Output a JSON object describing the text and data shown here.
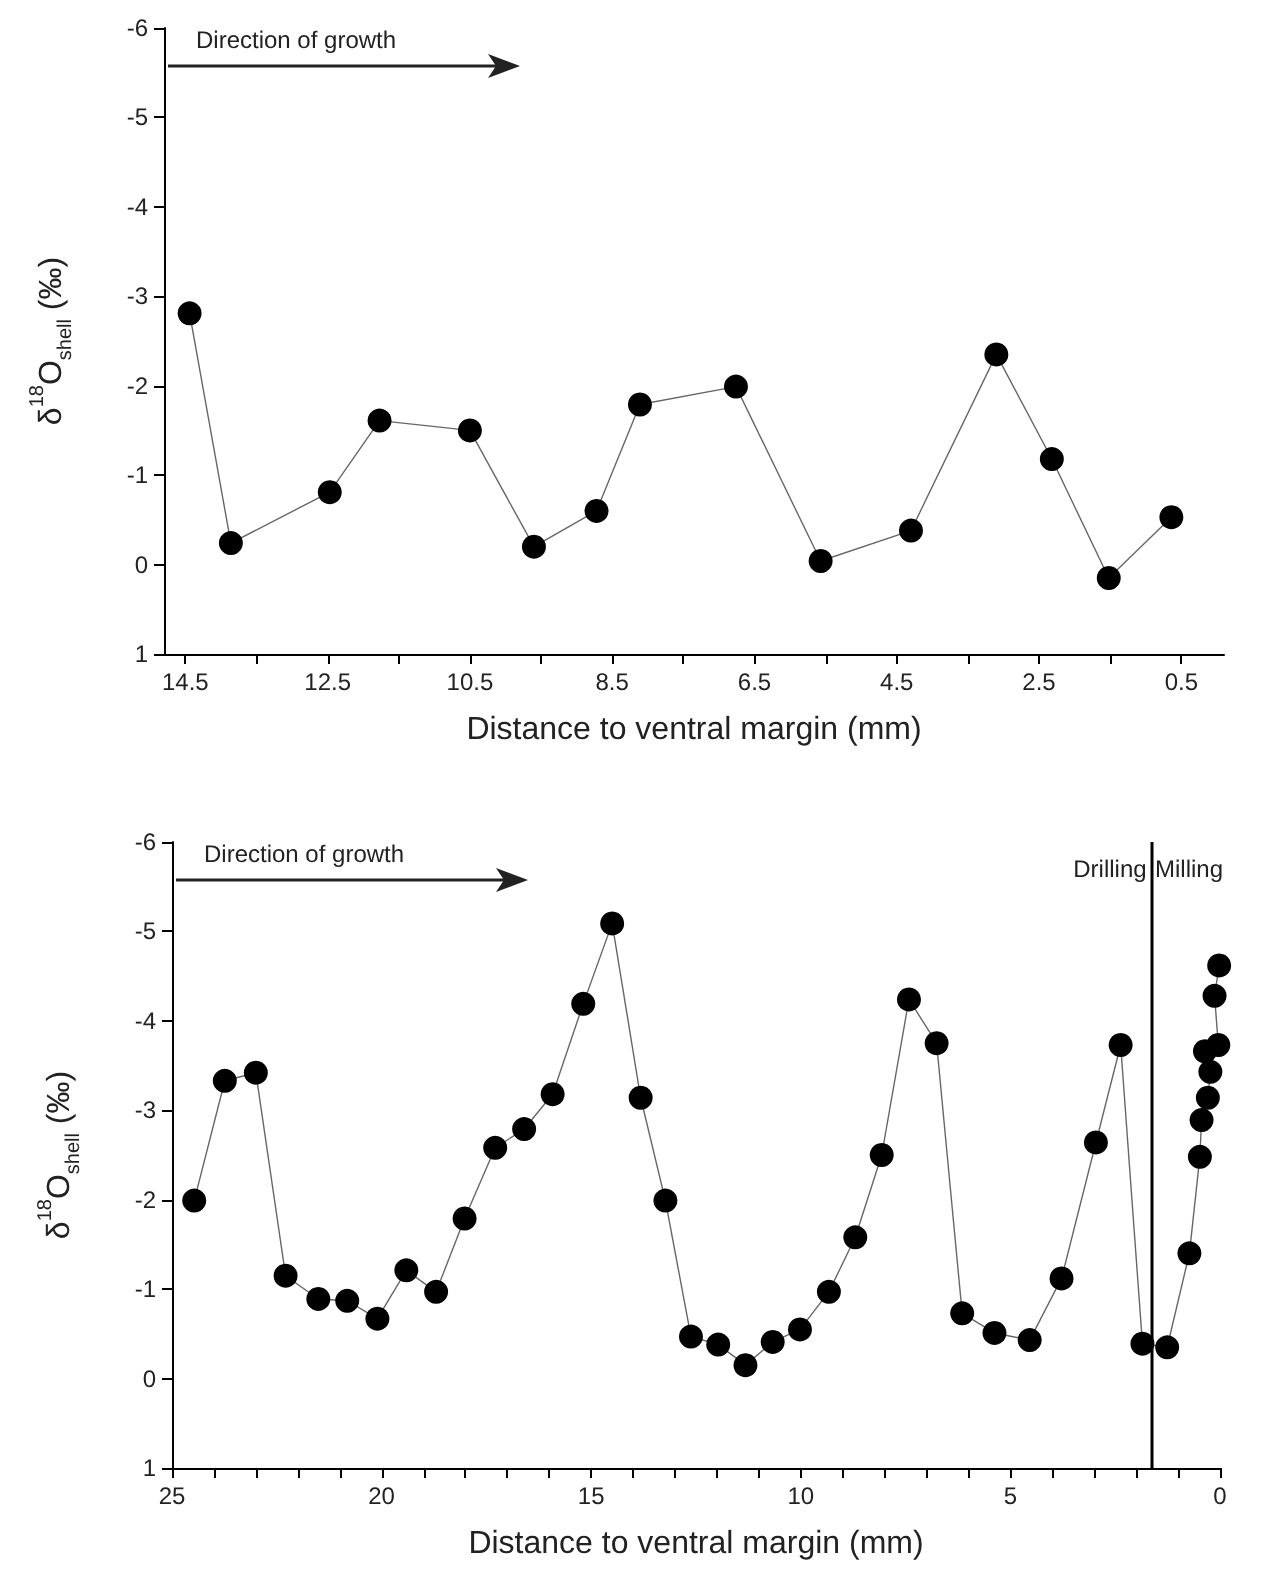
{
  "chart_data": [
    {
      "type": "line",
      "xlabel": "Distance to ventral margin (mm)",
      "ylabel": "δ$^{18}$O$_{shell}$ (‰)",
      "annotations": [
        "Direction of growth"
      ],
      "x": [
        14.44,
        13.86,
        12.47,
        11.77,
        10.5,
        9.6,
        8.72,
        8.11,
        6.76,
        5.57,
        4.3,
        3.1,
        2.32,
        1.52,
        0.64
      ],
      "values": [
        -2.81,
        -0.24,
        -0.81,
        -1.61,
        -1.5,
        -0.2,
        -0.6,
        -1.79,
        -1.99,
        -0.04,
        -0.38,
        -2.35,
        -1.18,
        0.15,
        -0.53
      ],
      "color": "#000000",
      "marker": "circle",
      "line_style": "solid",
      "xlim": [
        14.8,
        -0.1
      ],
      "xticks": [
        14.5,
        {
          "value": 13.5,
          "label": null
        },
        12.5,
        {
          "value": 11.5,
          "label": null
        },
        10.5,
        {
          "value": 9.5,
          "label": null
        },
        8.5,
        {
          "value": 7.5,
          "label": null
        },
        6.5,
        {
          "value": 5.5,
          "label": null
        },
        4.5,
        {
          "value": 3.5,
          "label": null
        },
        2.5,
        {
          "value": 1.5,
          "label": null
        },
        0.5
      ],
      "ylim": [
        1,
        -6
      ],
      "yticks": [
        -6,
        -5,
        -4,
        -3,
        -2,
        -1,
        0,
        1
      ]
    },
    {
      "type": "line",
      "xlabel": "Distance to ventral margin (mm)",
      "ylabel": "δ$^{18}$O$_{shell}$ (‰)",
      "annotations": [
        "Direction of growth",
        {
          "text": "Drilling",
          "x": 1.75,
          "y": -5.7
        },
        {
          "text": "Milling",
          "x": 1.55,
          "y": -5.7
        }
      ],
      "x": [
        24.47,
        23.74,
        23.0,
        22.29,
        21.51,
        20.82,
        20.1,
        19.41,
        18.7,
        18.02,
        17.29,
        16.6,
        15.92,
        15.19,
        14.5,
        13.82,
        13.23,
        12.62,
        11.97,
        11.32,
        10.67,
        10.02,
        9.33,
        8.7,
        8.07,
        7.42,
        6.76,
        6.15,
        5.38,
        4.54,
        3.78,
        2.96,
        2.37,
        1.85,
        1.26,
        0.73,
        0.48,
        0.44,
        0.29,
        0.23,
        0.36,
        0.04,
        0.13,
        0.02
      ],
      "values": [
        -1.99,
        -3.33,
        -3.42,
        -1.15,
        -0.89,
        -0.87,
        -0.67,
        -1.21,
        -0.97,
        -1.79,
        -2.58,
        -2.79,
        -3.18,
        -4.19,
        -5.09,
        -3.14,
        -1.99,
        -0.47,
        -0.38,
        -0.15,
        -0.41,
        -0.55,
        -0.97,
        -1.58,
        -2.5,
        -4.24,
        -3.75,
        -0.73,
        -0.51,
        -0.43,
        -1.12,
        -2.64,
        -3.73,
        -0.39,
        -0.35,
        -1.4,
        -2.48,
        -2.89,
        -3.14,
        -3.43,
        -3.66,
        -3.73,
        -4.28,
        -4.62
      ],
      "color": "#000000",
      "marker": "circle",
      "line_style": "solid",
      "ref_lines": [
        {
          "axis": "x",
          "value": 1.65,
          "color": "#000000"
        }
      ],
      "xlim": [
        25,
        0
      ],
      "xticks": [
        25,
        {
          "value": 24,
          "label": null
        },
        {
          "value": 23,
          "label": null
        },
        {
          "value": 22,
          "label": null
        },
        {
          "value": 21,
          "label": null
        },
        20,
        {
          "value": 19,
          "label": null
        },
        {
          "value": 18,
          "label": null
        },
        {
          "value": 17,
          "label": null
        },
        {
          "value": 16,
          "label": null
        },
        15,
        {
          "value": 14,
          "label": null
        },
        {
          "value": 13,
          "label": null
        },
        {
          "value": 12,
          "label": null
        },
        {
          "value": 11,
          "label": null
        },
        10,
        {
          "value": 9,
          "label": null
        },
        {
          "value": 8,
          "label": null
        },
        {
          "value": 7,
          "label": null
        },
        {
          "value": 6,
          "label": null
        },
        5,
        {
          "value": 4,
          "label": null
        },
        {
          "value": 3,
          "label": null
        },
        {
          "value": 2,
          "label": null
        },
        {
          "value": 1,
          "label": null
        },
        0
      ],
      "ylim": [
        1,
        -6
      ],
      "yticks": [
        -6,
        -5,
        -4,
        -3,
        -2,
        -1,
        0,
        1
      ]
    }
  ]
}
